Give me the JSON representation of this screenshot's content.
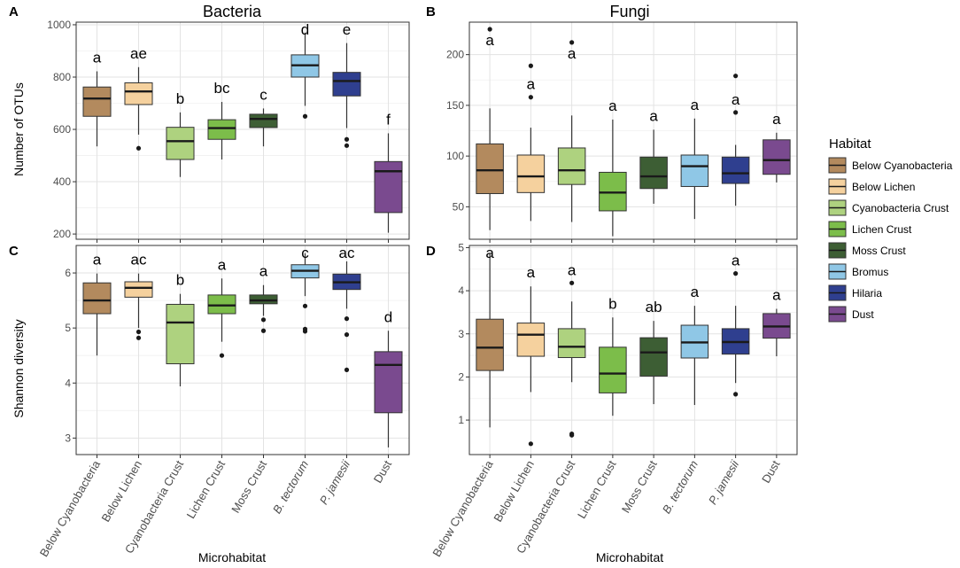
{
  "figure": {
    "xlabel": "Microhabitat",
    "categories": [
      "Below Cyanobacteria",
      "Below Lichen",
      "Cyanobacteria Crust",
      "Lichen Crust",
      "Moss Crust",
      "B. tectorum",
      "P. jamesii",
      "Dust"
    ],
    "italic_categories": [
      5,
      6
    ]
  },
  "legend": {
    "title": "Habitat",
    "items": [
      {
        "label": "Below Cyanobacteria",
        "color": "#b38a5e"
      },
      {
        "label": "Below Lichen",
        "color": "#f5d19e"
      },
      {
        "label": "Cyanobacteria Crust",
        "color": "#aed27f"
      },
      {
        "label": "Lichen Crust",
        "color": "#7cbd4a"
      },
      {
        "label": "Moss Crust",
        "color": "#3d5e34"
      },
      {
        "label": "Bromus",
        "color": "#8fc7e6"
      },
      {
        "label": "Hilaria",
        "color": "#2f3f8f"
      },
      {
        "label": "Dust",
        "color": "#7a4a8f"
      }
    ]
  },
  "chart_data": [
    {
      "panel": "A",
      "title": "Bacteria",
      "type": "boxplot",
      "ylabel": "Number of OTUs",
      "ylim": [
        180,
        1010
      ],
      "yticks": [
        200,
        400,
        600,
        800,
        1000
      ],
      "boxes": [
        {
          "q1": 650,
          "median": 718,
          "q3": 762,
          "low": 535,
          "high": 822,
          "outliers": [],
          "letter": "a"
        },
        {
          "q1": 695,
          "median": 745,
          "q3": 778,
          "low": 580,
          "high": 838,
          "outliers": [
            528
          ],
          "letter": "ae"
        },
        {
          "q1": 485,
          "median": 555,
          "q3": 608,
          "low": 418,
          "high": 665,
          "outliers": [],
          "letter": "b"
        },
        {
          "q1": 562,
          "median": 605,
          "q3": 637,
          "low": 485,
          "high": 705,
          "outliers": [],
          "letter": "bc"
        },
        {
          "q1": 607,
          "median": 640,
          "q3": 658,
          "low": 535,
          "high": 680,
          "outliers": [],
          "letter": "c"
        },
        {
          "q1": 800,
          "median": 845,
          "q3": 885,
          "low": 690,
          "high": 970,
          "outliers": [
            650
          ],
          "letter": "d"
        },
        {
          "q1": 728,
          "median": 785,
          "q3": 818,
          "low": 605,
          "high": 930,
          "outliers": [
            562,
            538
          ],
          "letter": "e"
        },
        {
          "q1": 282,
          "median": 440,
          "q3": 477,
          "low": 205,
          "high": 585,
          "outliers": [],
          "letter": "f"
        }
      ]
    },
    {
      "panel": "B",
      "title": "Fungi",
      "type": "boxplot",
      "ylabel": "",
      "ylim": [
        18,
        232
      ],
      "yticks": [
        50,
        100,
        150,
        200
      ],
      "boxes": [
        {
          "q1": 63,
          "median": 86,
          "q3": 112,
          "low": 27,
          "high": 147,
          "outliers": [
            225
          ],
          "letter": "a"
        },
        {
          "q1": 64,
          "median": 80,
          "q3": 101,
          "low": 36,
          "high": 128,
          "outliers": [
            189,
            158
          ],
          "letter": "a"
        },
        {
          "q1": 72,
          "median": 86,
          "q3": 108,
          "low": 35,
          "high": 140,
          "outliers": [
            212
          ],
          "letter": "a"
        },
        {
          "q1": 46,
          "median": 64,
          "q3": 84,
          "low": 21,
          "high": 136,
          "outliers": [],
          "letter": "a"
        },
        {
          "q1": 68,
          "median": 80,
          "q3": 99,
          "low": 53,
          "high": 126,
          "outliers": [],
          "letter": "a"
        },
        {
          "q1": 70,
          "median": 90,
          "q3": 101,
          "low": 38,
          "high": 137,
          "outliers": [],
          "letter": "a"
        },
        {
          "q1": 73,
          "median": 83,
          "q3": 99,
          "low": 51,
          "high": 111,
          "outliers": [
            179,
            143
          ],
          "letter": "a"
        },
        {
          "q1": 82,
          "median": 96,
          "q3": 116,
          "low": 74,
          "high": 123,
          "outliers": [],
          "letter": "a"
        }
      ]
    },
    {
      "panel": "C",
      "title": "",
      "type": "boxplot",
      "ylabel": "Shannon diversity",
      "ylim": [
        2.7,
        6.5
      ],
      "yticks": [
        3,
        4,
        5,
        6
      ],
      "boxes": [
        {
          "q1": 5.26,
          "median": 5.5,
          "q3": 5.82,
          "low": 4.5,
          "high": 5.99,
          "outliers": [],
          "letter": "a"
        },
        {
          "q1": 5.56,
          "median": 5.73,
          "q3": 5.84,
          "low": 5.0,
          "high": 5.99,
          "outliers": [
            4.93,
            4.82
          ],
          "letter": "ac"
        },
        {
          "q1": 4.35,
          "median": 5.1,
          "q3": 5.43,
          "low": 3.94,
          "high": 5.62,
          "outliers": [],
          "letter": "b"
        },
        {
          "q1": 5.26,
          "median": 5.41,
          "q3": 5.6,
          "low": 4.75,
          "high": 5.9,
          "outliers": [
            4.5
          ],
          "letter": "a"
        },
        {
          "q1": 5.44,
          "median": 5.5,
          "q3": 5.6,
          "low": 5.22,
          "high": 5.78,
          "outliers": [
            5.15,
            4.95
          ],
          "letter": "a"
        },
        {
          "q1": 5.91,
          "median": 6.04,
          "q3": 6.15,
          "low": 5.58,
          "high": 6.36,
          "outliers": [
            5.4,
            4.98,
            4.94
          ],
          "letter": "c"
        },
        {
          "q1": 5.7,
          "median": 5.83,
          "q3": 5.98,
          "low": 5.35,
          "high": 6.21,
          "outliers": [
            5.17,
            4.88,
            4.24
          ],
          "letter": "ac"
        },
        {
          "q1": 3.46,
          "median": 4.33,
          "q3": 4.57,
          "low": 2.83,
          "high": 4.95,
          "outliers": [],
          "letter": "d"
        }
      ]
    },
    {
      "panel": "D",
      "title": "",
      "type": "boxplot",
      "ylabel": "",
      "ylim": [
        0.2,
        5.05
      ],
      "yticks": [
        1,
        2,
        3,
        4,
        5
      ],
      "boxes": [
        {
          "q1": 2.15,
          "median": 2.68,
          "q3": 3.34,
          "low": 0.83,
          "high": 4.86,
          "outliers": [],
          "letter": "a"
        },
        {
          "q1": 2.48,
          "median": 2.98,
          "q3": 3.25,
          "low": 1.65,
          "high": 4.1,
          "outliers": [
            0.45
          ],
          "letter": "a"
        },
        {
          "q1": 2.45,
          "median": 2.7,
          "q3": 3.12,
          "low": 1.88,
          "high": 3.75,
          "outliers": [
            4.18,
            0.68,
            0.65
          ],
          "letter": "a"
        },
        {
          "q1": 1.63,
          "median": 2.08,
          "q3": 2.69,
          "low": 1.1,
          "high": 3.38,
          "outliers": [],
          "letter": "b"
        },
        {
          "q1": 2.02,
          "median": 2.57,
          "q3": 2.91,
          "low": 1.37,
          "high": 3.3,
          "outliers": [],
          "letter": "ab"
        },
        {
          "q1": 2.44,
          "median": 2.8,
          "q3": 3.2,
          "low": 1.35,
          "high": 3.65,
          "outliers": [],
          "letter": "a"
        },
        {
          "q1": 2.53,
          "median": 2.81,
          "q3": 3.12,
          "low": 1.86,
          "high": 3.65,
          "outliers": [
            4.4,
            1.6
          ],
          "letter": "a"
        },
        {
          "q1": 2.9,
          "median": 3.17,
          "q3": 3.47,
          "low": 2.48,
          "high": 3.58,
          "outliers": [],
          "letter": "a"
        }
      ]
    }
  ]
}
